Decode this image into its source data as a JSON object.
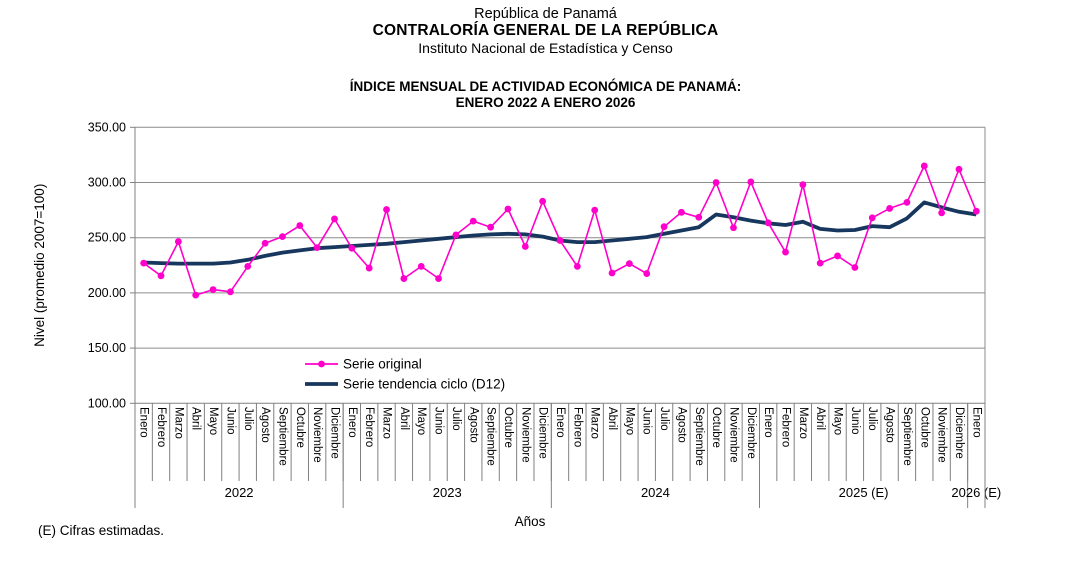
{
  "header": {
    "org_line1": "República de Panamá",
    "org_line2": "CONTRALORÍA GENERAL DE LA REPÚBLICA",
    "org_line3": "Instituto Nacional de Estadística y Censo",
    "chart_title_line1": "ÍNDICE MENSUAL DE ACTIVIDAD ECONÓMICA DE PANAMÁ:",
    "chart_title_line2": "ENERO 2022 A ENERO 2026"
  },
  "footer": {
    "note": "(E) Cifras estimadas.",
    "xaxis_title": "Años"
  },
  "colors": {
    "serie_original": "#FF00CC",
    "serie_tendencia": "#17375E",
    "gridline": "#8C8C8C",
    "axis": "#808080",
    "text": "#000000",
    "background": "#FFFFFF"
  },
  "chart_data": {
    "type": "line",
    "title": "ÍNDICE MENSUAL DE ACTIVIDAD ECONÓMICA DE PANAMÁ: ENERO 2022 A ENERO 2026",
    "xlabel": "Años",
    "ylabel": "Nivel (promedio 2007=100)",
    "ylim": [
      100,
      350
    ],
    "ytick_step": 50,
    "ytick_labels": [
      "100.00",
      "150.00",
      "200.00",
      "250.00",
      "300.00",
      "350.00"
    ],
    "grid": true,
    "legend_position": "inside bottom-center-left",
    "categories": [
      "Enero",
      "Febrero",
      "Marzo",
      "Abril",
      "Mayo",
      "Junio",
      "Julio",
      "Agosto",
      "Septiembre",
      "Octubre",
      "Noviembre",
      "Diciembre",
      "Enero",
      "Febrero",
      "Marzo",
      "Abril",
      "Mayo",
      "Junio",
      "Julio",
      "Agosto",
      "Septiembre",
      "Octubre",
      "Noviembre",
      "Diciembre",
      "Enero",
      "Febrero",
      "Marzo",
      "Abril",
      "Mayo",
      "Junio",
      "Julio",
      "Agosto",
      "Septiembre",
      "Octubre",
      "Noviembre",
      "Diciembre",
      "Enero",
      "Febrero",
      "Marzo",
      "Abril",
      "Mayo",
      "Junio",
      "Julio",
      "Agosto",
      "Septiembre",
      "Octubre",
      "Noviembre",
      "Diciembre",
      "Enero"
    ],
    "year_groups": [
      {
        "label": "2022",
        "months": 12
      },
      {
        "label": "2023",
        "months": 12
      },
      {
        "label": "2024",
        "months": 12
      },
      {
        "label": "2025 (E)",
        "months": 12
      },
      {
        "label": "2026 (E)",
        "months": 1
      }
    ],
    "series": [
      {
        "name": "Serie original",
        "color": "#FF00CC",
        "marker": "circle",
        "line_width": 1.6,
        "values": [
          227,
          215.5,
          246.5,
          198,
          203,
          201,
          224,
          245,
          251,
          261,
          241,
          267,
          240.5,
          222.5,
          275.5,
          213,
          224,
          213,
          252.5,
          265,
          259.5,
          276,
          242,
          283,
          247.5,
          224,
          275,
          218,
          226.5,
          217.5,
          260,
          273,
          268.5,
          300,
          259,
          300.5,
          263.5,
          237,
          298,
          227,
          233.5,
          223,
          268,
          276.5,
          282,
          315,
          272.5,
          312,
          274
        ]
      },
      {
        "name": "Serie tendencia ciclo (D12)",
        "color": "#17375E",
        "marker": "none",
        "line_width": 3.8,
        "values": [
          227.5,
          227,
          226.5,
          226.5,
          226.5,
          227.5,
          230,
          233.5,
          236.5,
          238.5,
          240.5,
          241.5,
          242.5,
          243.5,
          244.5,
          246,
          247.5,
          249,
          250.5,
          252,
          253,
          253.5,
          253,
          251,
          247.5,
          246,
          246,
          247.5,
          249,
          250.5,
          253.5,
          256.5,
          259.5,
          271,
          268.5,
          265.5,
          263,
          261.5,
          264.5,
          258,
          256.5,
          257,
          260.5,
          259.5,
          267.5,
          282,
          277.5,
          273.5,
          271
        ]
      }
    ]
  }
}
